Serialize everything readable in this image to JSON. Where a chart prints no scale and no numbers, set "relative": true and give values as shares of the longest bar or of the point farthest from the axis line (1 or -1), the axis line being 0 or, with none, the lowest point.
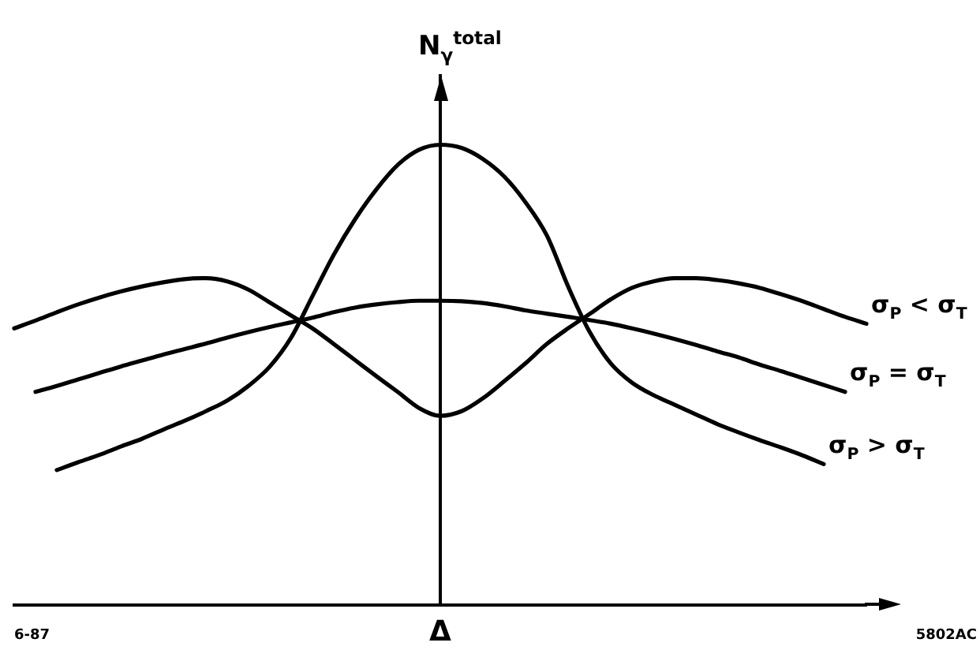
{
  "chart_data": {
    "type": "line",
    "relative": true,
    "xlabel": "Δ",
    "ylabel": "N$_{γ}$$^{total}$",
    "annotations": [
      "6-87",
      "5802AC"
    ],
    "categories": [
      null,
      null,
      null,
      null,
      null,
      null,
      null,
      null,
      null,
      null,
      null,
      null,
      null,
      null,
      null,
      null,
      null,
      null,
      null,
      null,
      null,
      null,
      null,
      null,
      null,
      null,
      null,
      null,
      null,
      null,
      null,
      null,
      null,
      null,
      null,
      null,
      null,
      null,
      null,
      null,
      null
    ],
    "series": [
      {
        "name": "σ$_{P}$ < σ$_{T}$",
        "color": "#000000",
        "values": [
          0.601,
          0.618,
          0.636,
          0.653,
          0.668,
          0.681,
          0.692,
          0.701,
          0.708,
          0.71,
          0.703,
          0.685,
          0.657,
          0.629,
          0.601,
          0.567,
          0.532,
          0.497,
          0.463,
          0.428,
          0.411,
          0.421,
          0.449,
          0.486,
          0.525,
          0.567,
          0.601,
          0.632,
          0.664,
          0.689,
          0.703,
          0.71,
          0.71,
          0.706,
          0.699,
          0.689,
          0.675,
          0.66,
          0.643,
          0.626,
          0.611
        ]
      },
      {
        "name": "σ$_{P}$ = σ$_{T}$",
        "color": "#000000",
        "values": [
          null,
          0.463,
          0.476,
          0.49,
          0.504,
          0.518,
          0.531,
          0.544,
          0.556,
          0.568,
          0.581,
          0.593,
          0.604,
          0.614,
          0.624,
          0.636,
          0.646,
          0.653,
          0.658,
          0.661,
          0.661,
          0.66,
          0.656,
          0.649,
          0.64,
          0.633,
          0.626,
          0.619,
          0.611,
          0.601,
          0.59,
          0.578,
          0.565,
          0.551,
          0.538,
          0.522,
          0.508,
          0.493,
          0.478,
          0.463,
          null
        ]
      },
      {
        "name": "σ$_{P}$ > σ$_{T}$",
        "color": "#000000",
        "values": [
          null,
          null,
          0.293,
          0.31,
          0.326,
          0.344,
          0.361,
          0.381,
          0.4,
          0.421,
          0.444,
          0.476,
          0.518,
          0.581,
          0.671,
          0.761,
          0.838,
          0.903,
          0.956,
          0.989,
          1,
          0.993,
          0.969,
          0.931,
          0.875,
          0.803,
          0.692,
          0.594,
          0.525,
          0.483,
          0.456,
          0.435,
          0.414,
          0.393,
          0.375,
          0.358,
          0.342,
          0.325,
          0.306,
          null,
          null
        ]
      }
    ],
    "grid": false,
    "tick_labels": false,
    "marker": "none",
    "line_style": "solid"
  }
}
